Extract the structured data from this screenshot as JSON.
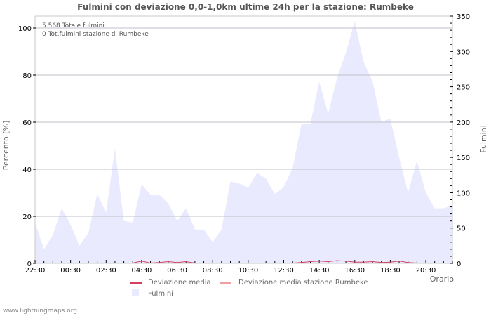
{
  "title": "Fulmini con deviazione 0,0-1,0km ultime 24h per la stazione: Rumbeke",
  "annotations": [
    "5.568 Totale fulmini",
    "0 Tot.fulmini stazione di Rumbeke"
  ],
  "footer": "www.lightningmaps.org",
  "legend": {
    "deviazione_media": "Deviazione media",
    "deviazione_media_stazione": "Deviazione media stazione Rumbeke",
    "fulmini": "Fulmini"
  },
  "colors": {
    "area": "#eaeaff",
    "deviazione_media": "#d04060",
    "deviazione_media_stazione": "#f0a0a0",
    "grid": "#c0c0c8"
  },
  "chart_data": {
    "type": "area",
    "title": "Fulmini con deviazione 0,0-1,0km ultime 24h per la stazione: Rumbeke",
    "xlabel": "Orario",
    "ylabel": "Percento   [%]",
    "y2label": "Fulmini",
    "x_ticks": [
      "22:30",
      "00:30",
      "02:30",
      "04:30",
      "06:30",
      "08:30",
      "10:30",
      "12:30",
      "14:30",
      "16:30",
      "18:30",
      "20:30"
    ],
    "ylim": [
      0,
      100
    ],
    "y_ticks": [
      0,
      20,
      40,
      60,
      80,
      100
    ],
    "y2lim": [
      0,
      350
    ],
    "y2_ticks": [
      0,
      50,
      100,
      150,
      200,
      250,
      300,
      350
    ],
    "grid": true,
    "x": [
      "22:30",
      "23:00",
      "23:30",
      "00:00",
      "00:30",
      "01:00",
      "01:30",
      "02:00",
      "02:30",
      "03:00",
      "03:30",
      "04:00",
      "04:30",
      "05:00",
      "05:30",
      "06:00",
      "06:30",
      "07:00",
      "07:30",
      "08:00",
      "08:30",
      "09:00",
      "09:30",
      "10:00",
      "10:30",
      "11:00",
      "11:30",
      "12:00",
      "12:30",
      "13:00",
      "13:30",
      "14:00",
      "14:30",
      "15:00",
      "15:30",
      "16:00",
      "16:30",
      "17:00",
      "17:30",
      "18:00",
      "18:30",
      "19:00",
      "19:30",
      "20:00",
      "20:30",
      "21:00",
      "21:30",
      "22:00"
    ],
    "series": [
      {
        "name": "Fulmini",
        "axis": "right",
        "values": [
          58,
          20,
          40,
          78,
          55,
          25,
          43,
          98,
          72,
          163,
          60,
          58,
          112,
          97,
          97,
          85,
          60,
          78,
          48,
          48,
          30,
          48,
          116,
          113,
          107,
          128,
          120,
          98,
          108,
          135,
          197,
          197,
          257,
          212,
          262,
          298,
          343,
          285,
          258,
          200,
          205,
          150,
          100,
          145,
          100,
          78,
          78,
          82
        ]
      },
      {
        "name": "Deviazione media",
        "axis": "left",
        "values": [
          0,
          0,
          0,
          0,
          0,
          0,
          0,
          0,
          0,
          0,
          0,
          0,
          0.8,
          0,
          0.2,
          0.6,
          0.2,
          0.6,
          0,
          0,
          0,
          0,
          0,
          0,
          0,
          0,
          0,
          0,
          0,
          0,
          0.2,
          0.6,
          0.8,
          0.6,
          1.0,
          0.8,
          0.4,
          0.4,
          0.6,
          0.2,
          0.4,
          0.8,
          0.2,
          0,
          0,
          0,
          0,
          0
        ]
      },
      {
        "name": "Deviazione media stazione Rumbeke",
        "axis": "left",
        "values": []
      }
    ]
  }
}
